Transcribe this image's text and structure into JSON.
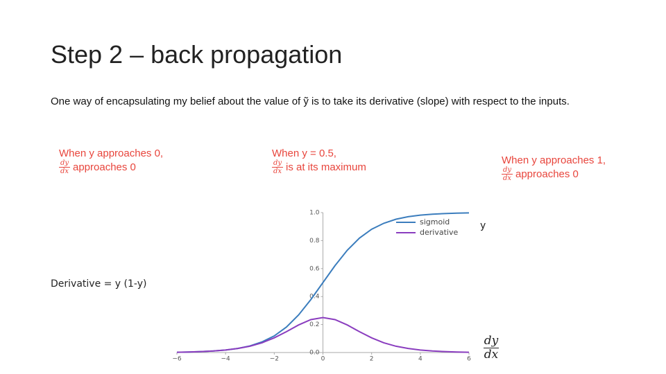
{
  "slide": {
    "title": "Step 2 – back propagation",
    "paragraph": "One way of encapsulating my belief about the value of ỹ is to take its derivative (slope) with respect to the inputs.",
    "fraction": {
      "numerator": "dy",
      "denominator": "dx"
    },
    "notes": [
      {
        "line1": "When y approaches 0,",
        "line2": "approaches 0"
      },
      {
        "line1": "When y = 0.5,",
        "line2": "is at its maximum"
      },
      {
        "line1": "When y approaches 1,",
        "line2": "approaches 0"
      }
    ],
    "y_label": "y",
    "derivative_label": "Derivative = y (1-y)"
  },
  "chart_data": {
    "type": "line",
    "x": [
      -6,
      -5.5,
      -5,
      -4.5,
      -4,
      -3.5,
      -3,
      -2.5,
      -2,
      -1.5,
      -1,
      -0.5,
      0,
      0.5,
      1,
      1.5,
      2,
      2.5,
      3,
      3.5,
      4,
      4.5,
      5,
      5.5,
      6
    ],
    "series": [
      {
        "name": "sigmoid",
        "color": "#3b7dbd",
        "values": [
          0.002,
          0.004,
          0.007,
          0.011,
          0.018,
          0.029,
          0.047,
          0.076,
          0.119,
          0.182,
          0.269,
          0.378,
          0.5,
          0.622,
          0.731,
          0.818,
          0.881,
          0.924,
          0.953,
          0.971,
          0.982,
          0.989,
          0.993,
          0.996,
          0.998
        ]
      },
      {
        "name": "derivative",
        "color": "#8a3dbf",
        "values": [
          0.002,
          0.004,
          0.007,
          0.011,
          0.018,
          0.029,
          0.045,
          0.07,
          0.105,
          0.149,
          0.197,
          0.235,
          0.25,
          0.235,
          0.197,
          0.149,
          0.105,
          0.07,
          0.045,
          0.029,
          0.018,
          0.011,
          0.007,
          0.004,
          0.002
        ]
      }
    ],
    "xlim": [
      -6,
      6
    ],
    "ylim": [
      0,
      1
    ],
    "xticks": [
      {
        "value": -6,
        "label": "−6"
      },
      {
        "value": -4,
        "label": "−4"
      },
      {
        "value": -2,
        "label": "−2"
      },
      0,
      2,
      4,
      6
    ],
    "yticks": [
      {
        "value": 0,
        "label": "0.0"
      },
      0.2,
      0.4,
      0.6,
      0.8,
      {
        "value": 1,
        "label": "1.0"
      }
    ],
    "grid": false,
    "legend": "upper right"
  }
}
